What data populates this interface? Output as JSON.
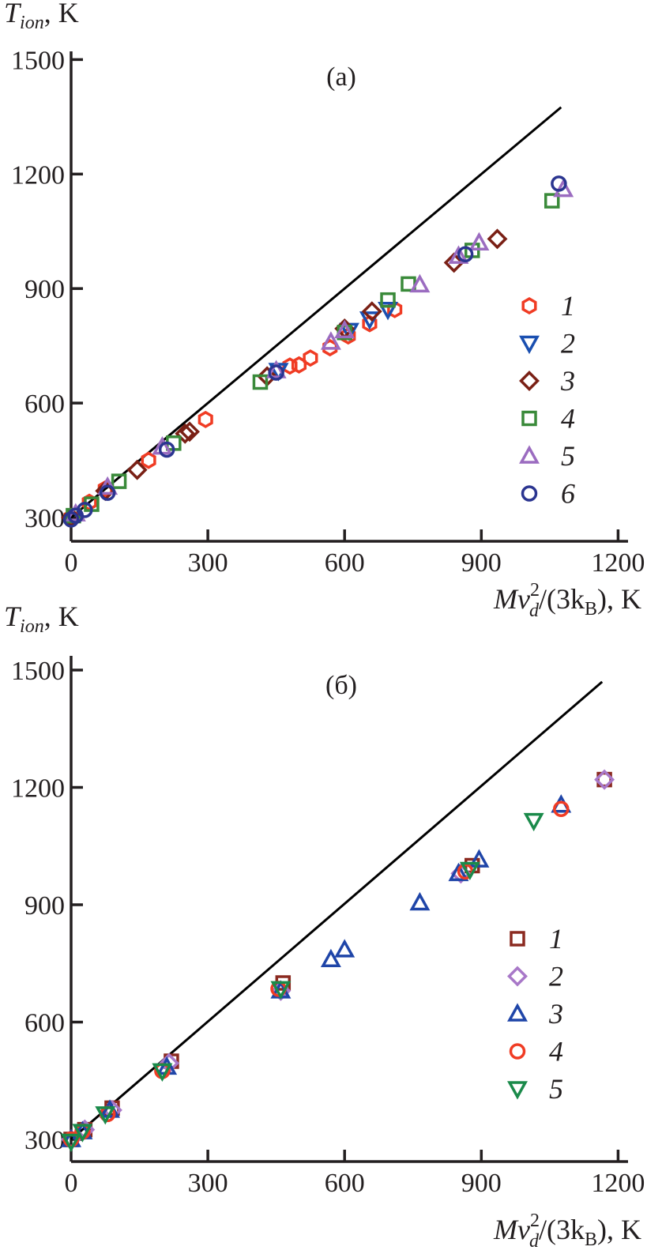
{
  "chart_data": [
    {
      "type": "scatter",
      "panel_label": "(a)",
      "ylabel": {
        "main": "T",
        "sub": "ion",
        "rest": ", K"
      },
      "xlabel": {
        "a": "Mv",
        "sup": "2",
        "sub": "d",
        "b": "/(3k",
        "sub2": "B",
        "c": "), K"
      },
      "xlim": [
        0,
        1225
      ],
      "ylim": [
        238,
        1525
      ],
      "xticks": [
        0,
        300,
        600,
        900,
        1200
      ],
      "yticks": [
        300,
        600,
        900,
        1200,
        1500
      ],
      "grid": false,
      "legend_placement": "right",
      "line": {
        "x": [
          0,
          1075
        ],
        "y": [
          300,
          1375
        ],
        "color": "#000000"
      },
      "series": [
        {
          "name": "1",
          "marker": "hexagon",
          "color": "#f03c24",
          "points": [
            [
              0,
              300
            ],
            [
              40,
              340
            ],
            [
              75,
              375
            ],
            [
              170,
              450
            ],
            [
              295,
              557
            ],
            [
              480,
              697
            ],
            [
              500,
              700
            ],
            [
              525,
              718
            ],
            [
              568,
              745
            ],
            [
              608,
              776
            ],
            [
              655,
              808
            ],
            [
              710,
              845
            ]
          ]
        },
        {
          "name": "2",
          "marker": "triangle-down",
          "color": "#1a4fb0",
          "points": [
            [
              455,
              685
            ],
            [
              610,
              790
            ],
            [
              655,
              820
            ],
            [
              695,
              845
            ]
          ]
        },
        {
          "name": "3",
          "marker": "diamond",
          "color": "#7a2015",
          "points": [
            [
              0,
              300
            ],
            [
              75,
              370
            ],
            [
              145,
              425
            ],
            [
              250,
              520
            ],
            [
              260,
              525
            ],
            [
              430,
              670
            ],
            [
              600,
              795
            ],
            [
              660,
              840
            ],
            [
              840,
              968
            ],
            [
              935,
              1030
            ]
          ]
        },
        {
          "name": "4",
          "marker": "square",
          "color": "#3a8a3a",
          "points": [
            [
              5,
              305
            ],
            [
              45,
              335
            ],
            [
              105,
              395
            ],
            [
              225,
              495
            ],
            [
              415,
              655
            ],
            [
              600,
              785
            ],
            [
              695,
              870
            ],
            [
              740,
              912
            ],
            [
              880,
              1000
            ],
            [
              1055,
              1130
            ]
          ]
        },
        {
          "name": "5",
          "marker": "triangle-up",
          "color": "#9b6cc0",
          "points": [
            [
              10,
              310
            ],
            [
              80,
              380
            ],
            [
              200,
              485
            ],
            [
              450,
              685
            ],
            [
              570,
              760
            ],
            [
              600,
              790
            ],
            [
              765,
              910
            ],
            [
              850,
              985
            ],
            [
              895,
              1020
            ],
            [
              1080,
              1160
            ]
          ]
        },
        {
          "name": "6",
          "marker": "circle",
          "color": "#2b3590",
          "points": [
            [
              0,
              295
            ],
            [
              10,
              305
            ],
            [
              30,
              320
            ],
            [
              80,
              365
            ],
            [
              210,
              478
            ],
            [
              450,
              680
            ],
            [
              865,
              990
            ],
            [
              1070,
              1175
            ]
          ]
        }
      ]
    },
    {
      "type": "scatter",
      "panel_label": "(б)",
      "ylabel": {
        "main": "T",
        "sub": "ion",
        "rest": ", K"
      },
      "xlabel": {
        "a": "Mv",
        "sup": "2",
        "sub": "d",
        "b": "/(3k",
        "sub2": "B",
        "c": "), K"
      },
      "xlim": [
        0,
        1225
      ],
      "ylim": [
        243,
        1535
      ],
      "xticks": [
        0,
        300,
        600,
        900,
        1200
      ],
      "yticks": [
        300,
        600,
        900,
        1200,
        1500
      ],
      "grid": false,
      "legend_placement": "right",
      "line": {
        "x": [
          0,
          1165
        ],
        "y": [
          300,
          1470
        ],
        "color": "#000000"
      },
      "series": [
        {
          "name": "1",
          "marker": "square",
          "color": "#8b2a20",
          "points": [
            [
              0,
              300
            ],
            [
              30,
              325
            ],
            [
              90,
              380
            ],
            [
              220,
              500
            ],
            [
              465,
              700
            ],
            [
              880,
              1000
            ],
            [
              1170,
              1220
            ]
          ]
        },
        {
          "name": "2",
          "marker": "diamond",
          "color": "#a878c8",
          "points": [
            [
              0,
              300
            ],
            [
              30,
              325
            ],
            [
              90,
              375
            ],
            [
              215,
              495
            ],
            [
              460,
              680
            ],
            [
              855,
              980
            ],
            [
              1170,
              1220
            ]
          ]
        },
        {
          "name": "3",
          "marker": "triangle-up",
          "color": "#1f45a8",
          "points": [
            [
              0,
              300
            ],
            [
              25,
              320
            ],
            [
              85,
              375
            ],
            [
              210,
              485
            ],
            [
              460,
              680
            ],
            [
              570,
              760
            ],
            [
              600,
              785
            ],
            [
              765,
              905
            ],
            [
              850,
              980
            ],
            [
              895,
              1015
            ],
            [
              1075,
              1155
            ]
          ]
        },
        {
          "name": "4",
          "marker": "circle",
          "color": "#f03c24",
          "points": [
            [
              0,
              300
            ],
            [
              25,
              320
            ],
            [
              80,
              365
            ],
            [
              200,
              475
            ],
            [
              455,
              685
            ],
            [
              865,
              985
            ],
            [
              1075,
              1145
            ]
          ]
        },
        {
          "name": "5",
          "marker": "triangle-down",
          "color": "#1a8a4a",
          "points": [
            [
              0,
              295
            ],
            [
              25,
              320
            ],
            [
              75,
              365
            ],
            [
              200,
              475
            ],
            [
              460,
              685
            ],
            [
              875,
              990
            ],
            [
              1015,
              1115
            ]
          ]
        }
      ]
    }
  ]
}
